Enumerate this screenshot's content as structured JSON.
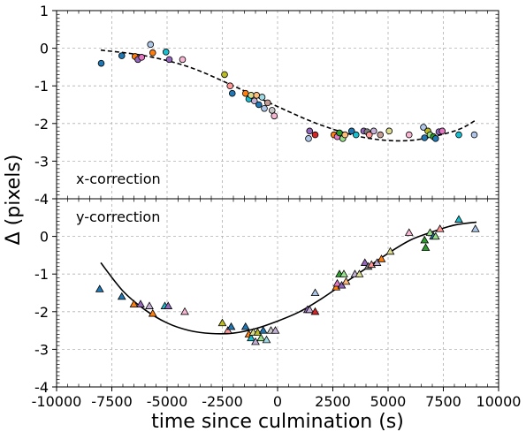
{
  "chart_data": [
    {
      "panel": "top",
      "type": "scatter",
      "annotation": "x-correction",
      "ylim": [
        -4,
        1
      ],
      "xlim": [
        -10000,
        10000
      ],
      "yticks": [
        "1",
        "0",
        "-1",
        "-2",
        "-3",
        "-4"
      ],
      "grid": true,
      "marker": "circle",
      "points": [
        {
          "x": -7980,
          "y": -0.4,
          "c": "#1f77b4"
        },
        {
          "x": -7050,
          "y": -0.2,
          "c": "#1f77b4"
        },
        {
          "x": -6450,
          "y": -0.22,
          "c": "#ff7f0e"
        },
        {
          "x": -6320,
          "y": -0.3,
          "c": "#9467bd"
        },
        {
          "x": -6150,
          "y": -0.24,
          "c": "#e377c2"
        },
        {
          "x": -5750,
          "y": 0.1,
          "c": "#aec7e8"
        },
        {
          "x": -5650,
          "y": -0.12,
          "c": "#ff7f0e"
        },
        {
          "x": -5050,
          "y": -0.1,
          "c": "#17becf"
        },
        {
          "x": -4900,
          "y": -0.3,
          "c": "#9467bd"
        },
        {
          "x": -4300,
          "y": -0.3,
          "c": "#f7b6d2"
        },
        {
          "x": -2400,
          "y": -0.7,
          "c": "#bcbd22"
        },
        {
          "x": -2150,
          "y": -1.0,
          "c": "#ff9896"
        },
        {
          "x": -2050,
          "y": -1.2,
          "c": "#1f77b4"
        },
        {
          "x": -1450,
          "y": -1.2,
          "c": "#ff7f0e"
        },
        {
          "x": -1300,
          "y": -1.35,
          "c": "#17becf"
        },
        {
          "x": -1200,
          "y": -1.25,
          "c": "#dbdb8d"
        },
        {
          "x": -1050,
          "y": -1.4,
          "c": "#c5b0d5"
        },
        {
          "x": -950,
          "y": -1.25,
          "c": "#ffbb78"
        },
        {
          "x": -850,
          "y": -1.5,
          "c": "#1f77b4"
        },
        {
          "x": -700,
          "y": -1.3,
          "c": "#9edae5"
        },
        {
          "x": -600,
          "y": -1.6,
          "c": "#aec7e8"
        },
        {
          "x": -450,
          "y": -1.45,
          "c": "#c49c94"
        },
        {
          "x": -250,
          "y": -1.65,
          "c": "#c7c7c7"
        },
        {
          "x": -150,
          "y": -1.8,
          "c": "#f7b6d2"
        },
        {
          "x": 1400,
          "y": -2.4,
          "c": "#aec7e8"
        },
        {
          "x": 1450,
          "y": -2.2,
          "c": "#9467bd"
        },
        {
          "x": 1700,
          "y": -2.3,
          "c": "#d62728"
        },
        {
          "x": 2550,
          "y": -2.3,
          "c": "#ff7f0e"
        },
        {
          "x": 2700,
          "y": -2.35,
          "c": "#e377c2"
        },
        {
          "x": 2800,
          "y": -2.25,
          "c": "#2ca02c"
        },
        {
          "x": 2950,
          "y": -2.4,
          "c": "#98df8a"
        },
        {
          "x": 3050,
          "y": -2.3,
          "c": "#ffbb78"
        },
        {
          "x": 3350,
          "y": -2.2,
          "c": "#1f77b4"
        },
        {
          "x": 3550,
          "y": -2.3,
          "c": "#17becf"
        },
        {
          "x": 3900,
          "y": -2.2,
          "c": "#9467bd"
        },
        {
          "x": 4050,
          "y": -2.22,
          "c": "#7f7f7f"
        },
        {
          "x": 4150,
          "y": -2.3,
          "c": "#ff9896"
        },
        {
          "x": 4350,
          "y": -2.2,
          "c": "#c5b0d5"
        },
        {
          "x": 4650,
          "y": -2.3,
          "c": "#c49c94"
        },
        {
          "x": 5050,
          "y": -2.2,
          "c": "#dbdb8d"
        },
        {
          "x": 5950,
          "y": -2.3,
          "c": "#f7b6d2"
        },
        {
          "x": 6600,
          "y": -2.1,
          "c": "#aec7e8"
        },
        {
          "x": 6650,
          "y": -2.38,
          "c": "#1f77b4"
        },
        {
          "x": 6800,
          "y": -2.2,
          "c": "#bcbd22"
        },
        {
          "x": 6900,
          "y": -2.3,
          "c": "#98df8a"
        },
        {
          "x": 7050,
          "y": -2.35,
          "c": "#2ca02c"
        },
        {
          "x": 7150,
          "y": -2.4,
          "c": "#1f77b4"
        },
        {
          "x": 7300,
          "y": -2.22,
          "c": "#9467bd"
        },
        {
          "x": 7450,
          "y": -2.2,
          "c": "#e377c2"
        },
        {
          "x": 8200,
          "y": -2.3,
          "c": "#17becf"
        },
        {
          "x": 8900,
          "y": -2.3,
          "c": "#aec7e8"
        }
      ],
      "fit": {
        "style": "dashed",
        "x": [
          -8000,
          -6000,
          -4000,
          -2000,
          0,
          2000,
          4000,
          6000,
          8000,
          9000
        ],
        "y": [
          -0.05,
          -0.2,
          -0.5,
          -1.0,
          -1.55,
          -2.05,
          -2.38,
          -2.45,
          -2.2,
          -1.9
        ]
      }
    },
    {
      "panel": "bottom",
      "type": "scatter",
      "annotation": "y-correction",
      "ylim": [
        -4,
        1
      ],
      "xlim": [
        -10000,
        10000
      ],
      "yticks": [
        "0",
        "-1",
        "-2",
        "-3",
        "-4"
      ],
      "xticks": [
        "-10000",
        "-7500",
        "-5000",
        "-2500",
        "0",
        "2500",
        "5000",
        "7500",
        "10000"
      ],
      "xlabel": "time since culmination (s)",
      "grid": true,
      "marker": "triangle",
      "points": [
        {
          "x": -8050,
          "y": -1.4,
          "c": "#1f77b4"
        },
        {
          "x": -7050,
          "y": -1.6,
          "c": "#1f77b4"
        },
        {
          "x": -6500,
          "y": -1.8,
          "c": "#ff7f0e"
        },
        {
          "x": -6200,
          "y": -1.8,
          "c": "#9467bd"
        },
        {
          "x": -5800,
          "y": -1.85,
          "c": "#c5b0d5"
        },
        {
          "x": -5650,
          "y": -2.05,
          "c": "#ff7f0e"
        },
        {
          "x": -5100,
          "y": -1.85,
          "c": "#17becf"
        },
        {
          "x": -4950,
          "y": -1.85,
          "c": "#9467bd"
        },
        {
          "x": -4200,
          "y": -2.0,
          "c": "#f7b6d2"
        },
        {
          "x": -2500,
          "y": -2.3,
          "c": "#bcbd22"
        },
        {
          "x": -2250,
          "y": -2.5,
          "c": "#ff9896"
        },
        {
          "x": -2100,
          "y": -2.4,
          "c": "#1f77b4"
        },
        {
          "x": -1450,
          "y": -2.4,
          "c": "#1f77b4"
        },
        {
          "x": -1300,
          "y": -2.6,
          "c": "#ff7f0e"
        },
        {
          "x": -1200,
          "y": -2.7,
          "c": "#17becf"
        },
        {
          "x": -1100,
          "y": -2.55,
          "c": "#dbdb8d"
        },
        {
          "x": -1000,
          "y": -2.8,
          "c": "#c5b0d5"
        },
        {
          "x": -900,
          "y": -2.55,
          "c": "#bcbd22"
        },
        {
          "x": -750,
          "y": -2.7,
          "c": "#98df8a"
        },
        {
          "x": -650,
          "y": -2.5,
          "c": "#1f77b4"
        },
        {
          "x": -500,
          "y": -2.75,
          "c": "#9edae5"
        },
        {
          "x": -300,
          "y": -2.5,
          "c": "#c7c7c7"
        },
        {
          "x": -100,
          "y": -2.5,
          "c": "#c5b0d5"
        },
        {
          "x": 1350,
          "y": -1.95,
          "c": "#9467bd"
        },
        {
          "x": 1450,
          "y": -1.95,
          "c": "#c5b0d5"
        },
        {
          "x": 1700,
          "y": -2.0,
          "c": "#d62728"
        },
        {
          "x": 1700,
          "y": -1.5,
          "c": "#aec7e8"
        },
        {
          "x": 2650,
          "y": -1.35,
          "c": "#ff7f0e"
        },
        {
          "x": 2700,
          "y": -1.25,
          "c": "#e377c2"
        },
        {
          "x": 2800,
          "y": -1.0,
          "c": "#2ca02c"
        },
        {
          "x": 2900,
          "y": -1.3,
          "c": "#9467bd"
        },
        {
          "x": 3000,
          "y": -1.0,
          "c": "#98df8a"
        },
        {
          "x": 3100,
          "y": -1.2,
          "c": "#ffbb78"
        },
        {
          "x": 3500,
          "y": -1.0,
          "c": "#c5b0d5"
        },
        {
          "x": 3700,
          "y": -1.0,
          "c": "#dbdb8d"
        },
        {
          "x": 3950,
          "y": -0.7,
          "c": "#9467bd"
        },
        {
          "x": 4100,
          "y": -0.8,
          "c": "#7f7f7f"
        },
        {
          "x": 4250,
          "y": -0.75,
          "c": "#ff9896"
        },
        {
          "x": 4500,
          "y": -0.7,
          "c": "#c5b0d5"
        },
        {
          "x": 4700,
          "y": -0.6,
          "c": "#ff7f0e"
        },
        {
          "x": 5100,
          "y": -0.4,
          "c": "#dbdb8d"
        },
        {
          "x": 5950,
          "y": 0.1,
          "c": "#f7b6d2"
        },
        {
          "x": 6650,
          "y": -0.1,
          "c": "#2ca02c"
        },
        {
          "x": 6700,
          "y": -0.3,
          "c": "#2ca02c"
        },
        {
          "x": 6900,
          "y": 0.1,
          "c": "#98df8a"
        },
        {
          "x": 7050,
          "y": 0.0,
          "c": "#1f77b4"
        },
        {
          "x": 7150,
          "y": 0.0,
          "c": "#98df8a"
        },
        {
          "x": 7350,
          "y": 0.2,
          "c": "#ff9896"
        },
        {
          "x": 8200,
          "y": 0.45,
          "c": "#17becf"
        },
        {
          "x": 8950,
          "y": 0.2,
          "c": "#aec7e8"
        }
      ],
      "fit": {
        "style": "solid",
        "x": [
          -8000,
          -7000,
          -6000,
          -5000,
          -4000,
          -3000,
          -2000,
          -1000,
          0,
          1000,
          2000,
          3000,
          4000,
          5000,
          6000,
          7000,
          8000,
          9000
        ],
        "y": [
          -0.7,
          -1.45,
          -1.95,
          -2.3,
          -2.5,
          -2.58,
          -2.57,
          -2.45,
          -2.25,
          -2.0,
          -1.65,
          -1.25,
          -0.85,
          -0.45,
          -0.1,
          0.12,
          0.3,
          0.38
        ]
      }
    }
  ],
  "shared_ylabel": "Δ (pixels)"
}
